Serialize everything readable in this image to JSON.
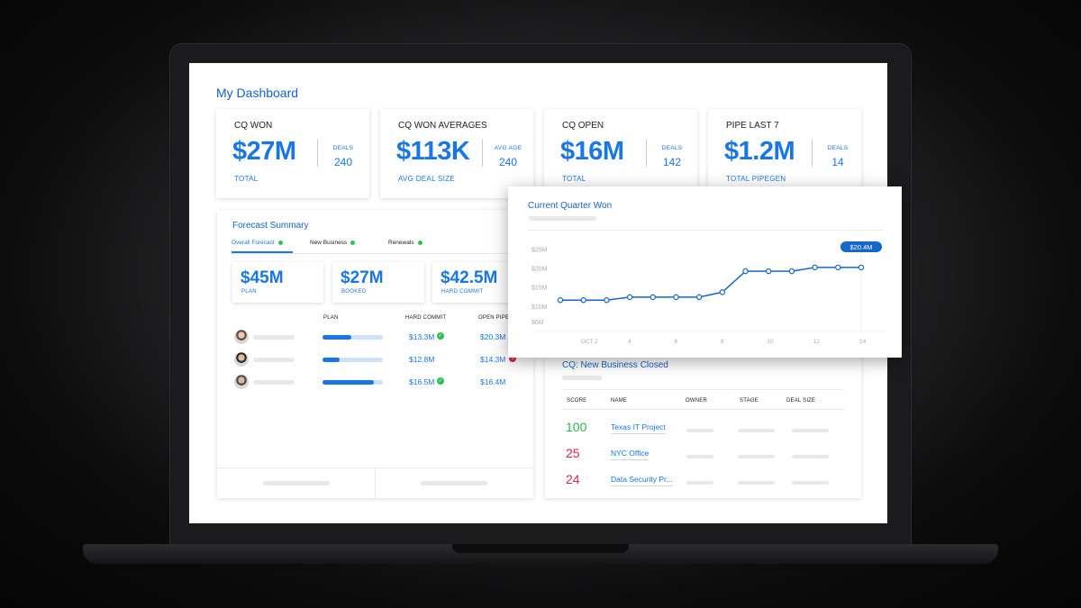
{
  "dashboard": {
    "title": "My Dashboard",
    "kpis": [
      {
        "title": "CQ WON",
        "value": "$27M",
        "sub": "TOTAL",
        "side_label": "DEALS",
        "side_value": "240"
      },
      {
        "title": "CQ WON AVERAGES",
        "value": "$113K",
        "sub": "AVG DEAL SIZE",
        "side_label": "AVG AGE",
        "side_value": "240"
      },
      {
        "title": "CQ OPEN",
        "value": "$16M",
        "sub": "TOTAL",
        "side_label": "DEALS",
        "side_value": "142"
      },
      {
        "title": "PIPE LAST 7",
        "value": "$1.2M",
        "sub": "TOTAL PIPEGEN",
        "side_label": "DEALS",
        "side_value": "14"
      }
    ]
  },
  "forecast": {
    "title": "Forecast Summary",
    "tabs": [
      {
        "label": "Overall Forecast",
        "active": true
      },
      {
        "label": "New Business",
        "active": false
      },
      {
        "label": "Renewals",
        "active": false
      }
    ],
    "cards": [
      {
        "value": "$45M",
        "label": "PLAN"
      },
      {
        "value": "$27M",
        "label": "BOOKED"
      },
      {
        "value": "$42.5M",
        "label": "HARD COMMIT"
      }
    ],
    "columns": {
      "plan": "PLAN",
      "hard_commit": "HARD COMMIT",
      "open_pipe": "OPEN PIPE"
    },
    "rows": [
      {
        "plan_progress": 0.48,
        "hard_commit": "$13.3M",
        "hard_status": "positive",
        "open_pipe": "$20.3M",
        "open_status": "none"
      },
      {
        "plan_progress": 0.28,
        "hard_commit": "$12.8M",
        "hard_status": "none",
        "open_pipe": "$14.3M",
        "open_status": "negative"
      },
      {
        "plan_progress": 0.85,
        "hard_commit": "$16.5M",
        "hard_status": "positive",
        "open_pipe": "$16.4M",
        "open_status": "none"
      }
    ]
  },
  "new_business": {
    "title": "CQ: New Business Closed",
    "columns": {
      "score": "SCORE",
      "name": "NAME",
      "owner": "OWNER",
      "stage": "STAGE",
      "deal_size": "DEAL SIZE"
    },
    "rows": [
      {
        "score": "100",
        "score_color": "#2bb34a",
        "name": "Texas IT Project"
      },
      {
        "score": "25",
        "score_color": "#d8264a",
        "name": "NYC Office"
      },
      {
        "score": "24",
        "score_color": "#d8264a",
        "name": "Data Security Pr..."
      }
    ]
  },
  "chart_data": {
    "type": "line",
    "title": "Current Quarter Won",
    "y_tick_labels": [
      "$25M",
      "$20M",
      "$15M",
      "$10M",
      "$6M"
    ],
    "x_tick_labels": [
      "OCT 2",
      "4",
      "6",
      "8",
      "10",
      "12",
      "14"
    ],
    "ylim": [
      5,
      27
    ],
    "x": [
      1,
      2,
      3,
      4,
      5,
      6,
      7,
      8,
      9,
      10,
      11,
      12,
      13,
      14
    ],
    "values": [
      11.8,
      11.8,
      11.8,
      12.6,
      12.6,
      12.6,
      12.6,
      13.9,
      19.4,
      19.4,
      19.4,
      20.4,
      20.4,
      20.4
    ],
    "tooltip": "$20.4M",
    "grid": false,
    "color": "#1766c9"
  },
  "colors": {
    "accent": "#1976e8",
    "title": "#1463c9",
    "positive": "#2bc253",
    "negative": "#d8264a"
  }
}
